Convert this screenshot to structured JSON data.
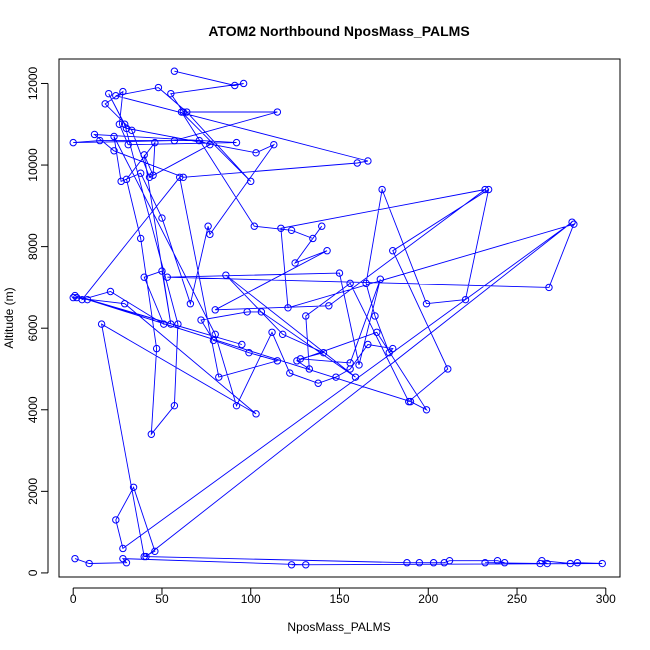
{
  "chart_data": {
    "type": "line",
    "title": "ATOM2 Northbound NposMass_PALMS",
    "xlabel": "NposMass_PALMS",
    "ylabel": "Altitude (m)",
    "xlim": [
      -8,
      308
    ],
    "ylim": [
      -100,
      12600
    ],
    "xticks": [
      0,
      50,
      100,
      150,
      200,
      250,
      300
    ],
    "yticks": [
      0,
      2000,
      4000,
      6000,
      8000,
      10000,
      12000
    ],
    "xtick_labels": [
      "0",
      "50",
      "100",
      "150",
      "200",
      "250",
      "300"
    ],
    "ytick_labels": [
      "0",
      "2000",
      "4000",
      "6000",
      "8000",
      "10000",
      "12000"
    ],
    "marker": "open-circle",
    "grid": false,
    "legend": "none",
    "color": "#0000ff",
    "series": [
      {
        "x": [
          57,
          91,
          96,
          55,
          62,
          115,
          57,
          0,
          15,
          71,
          77,
          43,
          33,
          18,
          28,
          26,
          31,
          92,
          12,
          23,
          62,
          160,
          166,
          24,
          48,
          64,
          100,
          61,
          102,
          123,
          135,
          140,
          125,
          143,
          80,
          144,
          232,
          117,
          121,
          282,
          268,
          53,
          150,
          161,
          173,
          156,
          128,
          141,
          118,
          86,
          159,
          106,
          98,
          72,
          79,
          99,
          115,
          82,
          60,
          5,
          21,
          51,
          40,
          50,
          55,
          40,
          45,
          46,
          30,
          38,
          47,
          44,
          57,
          59,
          29,
          20,
          30,
          103,
          113,
          77,
          76,
          66,
          50,
          38,
          27,
          23,
          80,
          92,
          112,
          122,
          138,
          148,
          156,
          166,
          180,
          178,
          170,
          165,
          174,
          199,
          221,
          234,
          180,
          211,
          189,
          156,
          131,
          133,
          126,
          171,
          199,
          190,
          1,
          95,
          8,
          2,
          0,
          29,
          103,
          16,
          40,
          46,
          34,
          24,
          28,
          281,
          41,
          188,
          195,
          203,
          209,
          212,
          239,
          243,
          232,
          263,
          267,
          264,
          280,
          284,
          298,
          123,
          131,
          28,
          30,
          9,
          1
        ],
        "y": [
          12300,
          11950,
          12000,
          11750,
          11300,
          11300,
          10600,
          10550,
          10600,
          10600,
          10500,
          9700,
          10850,
          11500,
          11800,
          11000,
          10500,
          10550,
          10750,
          10350,
          9700,
          10050,
          10100,
          11700,
          11900,
          11300,
          9600,
          11300,
          8500,
          8400,
          8200,
          8500,
          7600,
          7900,
          6450,
          6550,
          9400,
          8450,
          6500,
          8550,
          7000,
          7250,
          7350,
          5100,
          7200,
          5150,
          5250,
          5400,
          5850,
          7300,
          4800,
          6400,
          6400,
          6200,
          5700,
          5400,
          5200,
          4800,
          9700,
          6700,
          6900,
          6100,
          7250,
          7400,
          6100,
          10250,
          9750,
          10550,
          9650,
          8200,
          5500,
          3400,
          4100,
          6100,
          11000,
          11750,
          10900,
          10300,
          10500,
          8300,
          8500,
          6600,
          8700,
          9800,
          9600,
          10700,
          5850,
          4100,
          5900,
          4900,
          4650,
          4800,
          5000,
          5600,
          5500,
          5400,
          6300,
          7100,
          9400,
          6600,
          6700,
          9400,
          7900,
          5000,
          4200,
          7100,
          6300,
          5000,
          5200,
          5900,
          4000,
          4200,
          6800,
          5600,
          6700,
          6750,
          6750,
          6600,
          3900,
          6100,
          400,
          530,
          2100,
          1300,
          600,
          8600,
          400,
          250,
          250,
          250,
          250,
          300,
          300,
          250,
          250,
          230,
          230,
          300,
          230,
          250,
          230,
          200,
          200,
          350,
          250,
          230,
          350
        ]
      }
    ]
  }
}
